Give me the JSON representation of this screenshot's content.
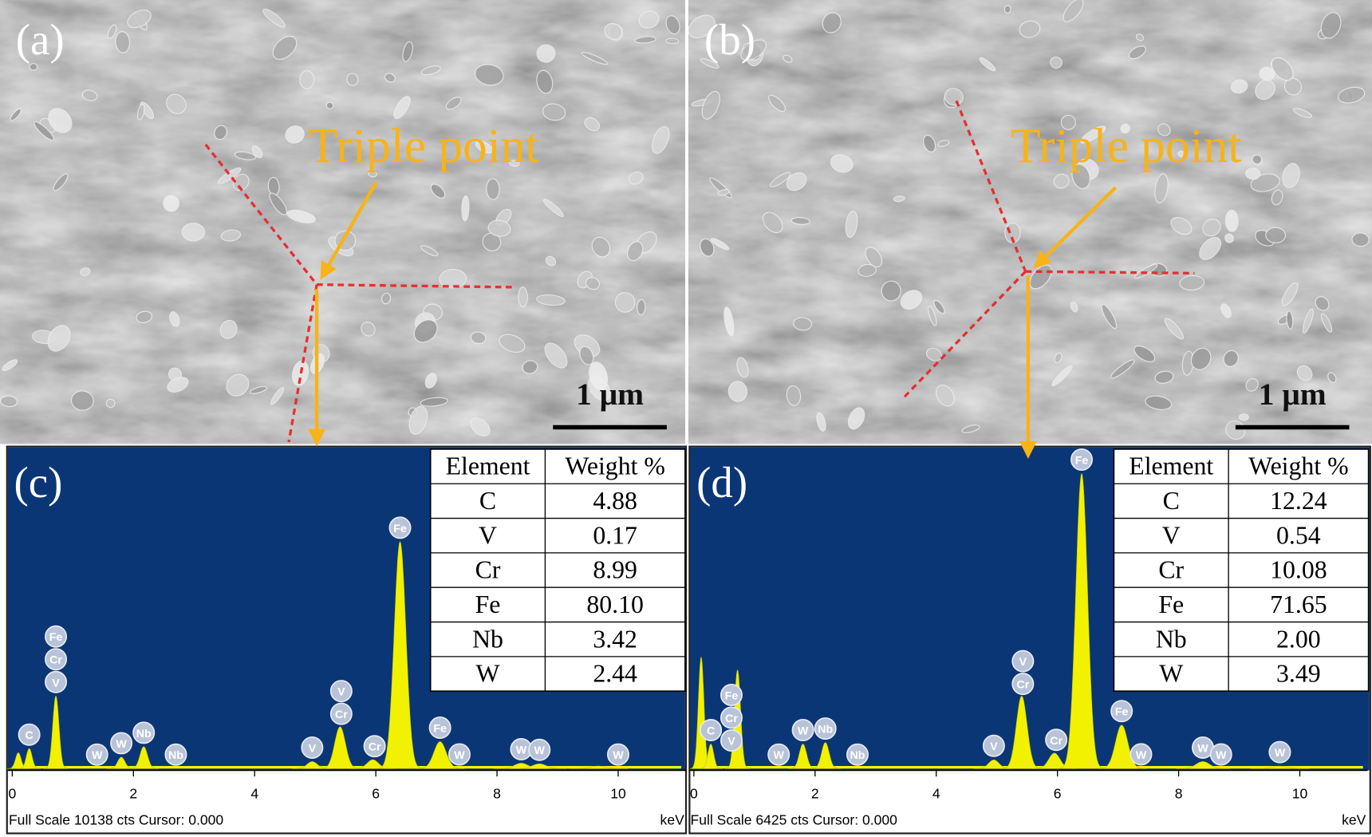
{
  "panels": [
    {
      "label": "(a)",
      "annotation": "Triple point",
      "scale_bar": "1 μm"
    },
    {
      "label": "(b)",
      "annotation": "Triple point",
      "scale_bar": "1 μm"
    }
  ],
  "spectra": [
    {
      "label": "(c)",
      "table": {
        "header": [
          "Element",
          "Weight %"
        ],
        "rows": [
          [
            "C",
            "4.88"
          ],
          [
            "V",
            "0.17"
          ],
          [
            "Cr",
            "8.99"
          ],
          [
            "Fe",
            "80.10"
          ],
          [
            "Nb",
            "3.42"
          ],
          [
            "W",
            "2.44"
          ]
        ]
      },
      "chart_data": {
        "type": "area",
        "color": "#f2f200",
        "xlim": [
          0,
          11.1
        ],
        "ylim": [
          0,
          10138
        ],
        "xticks": [
          0,
          2,
          4,
          6,
          8,
          10
        ],
        "x_unit": "keV",
        "footer": "Full Scale 10138 cts Cursor: 0.000",
        "x": [
          0.1,
          0.28,
          0.72,
          1.8,
          2.17,
          4.95,
          5.41,
          5.95,
          6.4,
          7.06,
          8.4,
          8.7,
          9.67
        ],
        "values": [
          500,
          630,
          2290,
          360,
          690,
          220,
          1320,
          280,
          7160,
          850,
          170,
          150,
          80
        ],
        "peak_labels": [
          {
            "x": 0.28,
            "labels": [
              "C"
            ]
          },
          {
            "x": 0.72,
            "labels": [
              "V",
              "Cr",
              "Fe"
            ]
          },
          {
            "x": 1.4,
            "labels": [
              "W"
            ]
          },
          {
            "x": 1.8,
            "labels": [
              "W"
            ]
          },
          {
            "x": 2.17,
            "labels": [
              "Nb"
            ]
          },
          {
            "x": 2.7,
            "labels": [
              "Nb"
            ]
          },
          {
            "x": 4.95,
            "labels": [
              "V"
            ]
          },
          {
            "x": 5.43,
            "labels": [
              "Cr",
              "V"
            ]
          },
          {
            "x": 5.98,
            "labels": [
              "Cr"
            ]
          },
          {
            "x": 6.4,
            "labels": [
              "Fe"
            ]
          },
          {
            "x": 7.06,
            "labels": [
              "Fe"
            ]
          },
          {
            "x": 7.38,
            "labels": [
              "W"
            ]
          },
          {
            "x": 8.4,
            "labels": [
              "W"
            ]
          },
          {
            "x": 8.7,
            "labels": [
              "W"
            ]
          },
          {
            "x": 10.0,
            "labels": [
              "W"
            ]
          }
        ]
      }
    },
    {
      "label": "(d)",
      "table": {
        "header": [
          "Element",
          "Weight %"
        ],
        "rows": [
          [
            "C",
            "12.24"
          ],
          [
            "V",
            "0.54"
          ],
          [
            "Cr",
            "10.08"
          ],
          [
            "Fe",
            "71.65"
          ],
          [
            "Nb",
            "2.00"
          ],
          [
            "W",
            "3.49"
          ]
        ]
      },
      "chart_data": {
        "type": "area",
        "color": "#f2f200",
        "xlim": [
          0,
          11.1
        ],
        "ylim": [
          0,
          6425
        ],
        "xticks": [
          0,
          2,
          4,
          6,
          8,
          10
        ],
        "x_unit": "keV",
        "footer": "Full Scale 6425 cts Cursor: 0.000",
        "x": [
          0.12,
          0.28,
          0.72,
          1.8,
          2.17,
          4.95,
          5.41,
          5.95,
          6.4,
          7.06,
          8.4,
          9.67
        ],
        "values": [
          2230,
          490,
          1970,
          490,
          520,
          175,
          1450,
          310,
          5900,
          870,
          140,
          50
        ],
        "peak_labels": [
          {
            "x": 0.28,
            "labels": [
              "C"
            ]
          },
          {
            "x": 0.62,
            "labels": [
              "V",
              "Cr",
              "Fe"
            ]
          },
          {
            "x": 1.4,
            "labels": [
              "W"
            ]
          },
          {
            "x": 1.8,
            "labels": [
              "W"
            ]
          },
          {
            "x": 2.17,
            "labels": [
              "Nb"
            ]
          },
          {
            "x": 2.7,
            "labels": [
              "Nb"
            ]
          },
          {
            "x": 4.95,
            "labels": [
              "V"
            ]
          },
          {
            "x": 5.43,
            "labels": [
              "Cr",
              "V"
            ]
          },
          {
            "x": 5.98,
            "labels": [
              "Cr"
            ]
          },
          {
            "x": 6.4,
            "labels": [
              "Fe"
            ]
          },
          {
            "x": 7.06,
            "labels": [
              "Fe"
            ]
          },
          {
            "x": 7.38,
            "labels": [
              "W"
            ]
          },
          {
            "x": 8.4,
            "labels": [
              "W"
            ]
          },
          {
            "x": 8.7,
            "labels": [
              "W"
            ]
          },
          {
            "x": 9.67,
            "labels": [
              "W"
            ]
          }
        ]
      }
    }
  ]
}
